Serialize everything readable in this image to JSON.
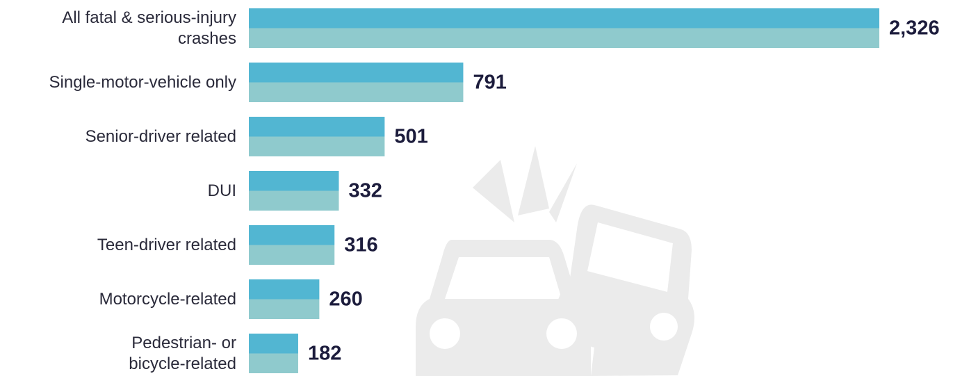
{
  "chart_data": {
    "type": "bar",
    "orientation": "horizontal",
    "categories": [
      "All fatal & serious-injury\ncrashes",
      "Single-motor-vehicle only",
      "Senior-driver related",
      "DUI",
      "Teen-driver related",
      "Motorcycle-related",
      "Pedestrian- or\nbicycle-related"
    ],
    "values": [
      2326,
      791,
      501,
      332,
      316,
      260,
      182
    ],
    "value_labels": [
      "2,326",
      "791",
      "501",
      "332",
      "316",
      "260",
      "182"
    ],
    "color_top": "#52b6d2",
    "color_bottom": "#8fcacd",
    "xlim": [
      0,
      2326
    ]
  }
}
